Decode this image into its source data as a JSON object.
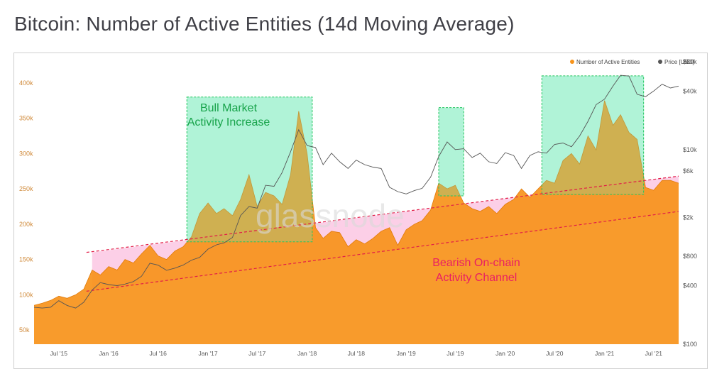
{
  "page": {
    "title": "Bitcoin: Number of Active Entities (14d Moving Average)"
  },
  "chart_data": {
    "type": "area",
    "legend": [
      {
        "name": "Number of Active Entities",
        "color": "#f7931a"
      },
      {
        "name": "Price [USD]",
        "color": "#555555"
      }
    ],
    "legend_position": "top-right",
    "watermark": "glassnode",
    "y_left": {
      "ticks": [
        "50k",
        "100k",
        "150k",
        "200k",
        "250k",
        "300k",
        "350k",
        "400k"
      ],
      "values": [
        50000,
        100000,
        150000,
        200000,
        250000,
        300000,
        350000,
        400000
      ]
    },
    "y_right": {
      "ticks": [
        "$100",
        "$400",
        "$800",
        "$2k",
        "$6k",
        "$10k",
        "$40k",
        "$80k"
      ],
      "values": [
        100,
        400,
        800,
        2000,
        6000,
        10000,
        40000,
        80000
      ],
      "scale": "log"
    },
    "x_ticks": [
      "Jul '15",
      "Jan '16",
      "Jul '16",
      "Jan '17",
      "Jul '17",
      "Jan '18",
      "Jul '18",
      "Jan '19",
      "Jul '19",
      "Jan '20",
      "Jul '20",
      "Jan '21",
      "Jul '21"
    ],
    "x_tick_dates": [
      "2015-07-01",
      "2016-01-01",
      "2016-07-01",
      "2017-01-01",
      "2017-07-01",
      "2018-01-01",
      "2018-07-01",
      "2019-01-01",
      "2019-07-01",
      "2020-01-01",
      "2020-07-01",
      "2021-01-01",
      "2021-07-01"
    ],
    "x_range": [
      "2015-04-01",
      "2021-10-01"
    ],
    "grid": false,
    "series": [
      {
        "name": "Number of Active Entities",
        "color": "#f7931a",
        "points": [
          [
            "2015-04-01",
            85000
          ],
          [
            "2015-05-01",
            88000
          ],
          [
            "2015-06-01",
            92000
          ],
          [
            "2015-07-01",
            98000
          ],
          [
            "2015-08-01",
            95000
          ],
          [
            "2015-09-01",
            100000
          ],
          [
            "2015-10-01",
            108000
          ],
          [
            "2015-11-01",
            135000
          ],
          [
            "2015-12-01",
            128000
          ],
          [
            "2016-01-01",
            140000
          ],
          [
            "2016-02-01",
            135000
          ],
          [
            "2016-03-01",
            150000
          ],
          [
            "2016-04-01",
            145000
          ],
          [
            "2016-05-01",
            158000
          ],
          [
            "2016-06-01",
            170000
          ],
          [
            "2016-07-01",
            155000
          ],
          [
            "2016-08-01",
            150000
          ],
          [
            "2016-09-01",
            162000
          ],
          [
            "2016-10-01",
            168000
          ],
          [
            "2016-11-01",
            182000
          ],
          [
            "2016-12-01",
            215000
          ],
          [
            "2017-01-01",
            230000
          ],
          [
            "2017-02-01",
            215000
          ],
          [
            "2017-03-01",
            222000
          ],
          [
            "2017-04-01",
            212000
          ],
          [
            "2017-05-01",
            235000
          ],
          [
            "2017-06-01",
            270000
          ],
          [
            "2017-07-01",
            225000
          ],
          [
            "2017-08-01",
            245000
          ],
          [
            "2017-09-01",
            240000
          ],
          [
            "2017-10-01",
            228000
          ],
          [
            "2017-11-01",
            270000
          ],
          [
            "2017-12-01",
            360000
          ],
          [
            "2018-01-01",
            300000
          ],
          [
            "2018-02-01",
            195000
          ],
          [
            "2018-03-01",
            180000
          ],
          [
            "2018-04-01",
            190000
          ],
          [
            "2018-05-01",
            188000
          ],
          [
            "2018-06-01",
            168000
          ],
          [
            "2018-07-01",
            178000
          ],
          [
            "2018-08-01",
            172000
          ],
          [
            "2018-09-01",
            180000
          ],
          [
            "2018-10-01",
            190000
          ],
          [
            "2018-11-01",
            195000
          ],
          [
            "2018-12-01",
            170000
          ],
          [
            "2019-01-01",
            192000
          ],
          [
            "2019-02-01",
            200000
          ],
          [
            "2019-03-01",
            205000
          ],
          [
            "2019-04-01",
            220000
          ],
          [
            "2019-05-01",
            258000
          ],
          [
            "2019-06-01",
            250000
          ],
          [
            "2019-07-01",
            255000
          ],
          [
            "2019-08-01",
            230000
          ],
          [
            "2019-09-01",
            222000
          ],
          [
            "2019-10-01",
            218000
          ],
          [
            "2019-11-01",
            225000
          ],
          [
            "2019-12-01",
            215000
          ],
          [
            "2020-01-01",
            228000
          ],
          [
            "2020-02-01",
            235000
          ],
          [
            "2020-03-01",
            250000
          ],
          [
            "2020-04-01",
            238000
          ],
          [
            "2020-05-01",
            250000
          ],
          [
            "2020-06-01",
            262000
          ],
          [
            "2020-07-01",
            258000
          ],
          [
            "2020-08-01",
            290000
          ],
          [
            "2020-09-01",
            300000
          ],
          [
            "2020-10-01",
            285000
          ],
          [
            "2020-11-01",
            325000
          ],
          [
            "2020-12-01",
            305000
          ],
          [
            "2021-01-01",
            375000
          ],
          [
            "2021-02-01",
            340000
          ],
          [
            "2021-03-01",
            355000
          ],
          [
            "2021-04-01",
            330000
          ],
          [
            "2021-05-01",
            320000
          ],
          [
            "2021-06-01",
            252000
          ],
          [
            "2021-07-01",
            248000
          ],
          [
            "2021-08-01",
            262000
          ],
          [
            "2021-09-01",
            262000
          ],
          [
            "2021-10-01",
            258000
          ]
        ]
      },
      {
        "name": "Price [USD]",
        "color": "#555555",
        "points": [
          [
            "2015-04-01",
            240
          ],
          [
            "2015-05-01",
            235
          ],
          [
            "2015-06-01",
            240
          ],
          [
            "2015-07-01",
            280
          ],
          [
            "2015-08-01",
            250
          ],
          [
            "2015-09-01",
            235
          ],
          [
            "2015-10-01",
            270
          ],
          [
            "2015-11-01",
            360
          ],
          [
            "2015-12-01",
            430
          ],
          [
            "2016-01-01",
            410
          ],
          [
            "2016-02-01",
            400
          ],
          [
            "2016-03-01",
            415
          ],
          [
            "2016-04-01",
            440
          ],
          [
            "2016-05-01",
            500
          ],
          [
            "2016-06-01",
            680
          ],
          [
            "2016-07-01",
            650
          ],
          [
            "2016-08-01",
            575
          ],
          [
            "2016-09-01",
            605
          ],
          [
            "2016-10-01",
            650
          ],
          [
            "2016-11-01",
            730
          ],
          [
            "2016-12-01",
            780
          ],
          [
            "2017-01-01",
            950
          ],
          [
            "2017-02-01",
            1050
          ],
          [
            "2017-03-01",
            1100
          ],
          [
            "2017-04-01",
            1250
          ],
          [
            "2017-05-01",
            2100
          ],
          [
            "2017-06-01",
            2600
          ],
          [
            "2017-07-01",
            2500
          ],
          [
            "2017-08-01",
            4300
          ],
          [
            "2017-09-01",
            4200
          ],
          [
            "2017-10-01",
            5800
          ],
          [
            "2017-11-01",
            9500
          ],
          [
            "2017-12-01",
            16000
          ],
          [
            "2018-01-01",
            11000
          ],
          [
            "2018-02-01",
            10500
          ],
          [
            "2018-03-01",
            7000
          ],
          [
            "2018-04-01",
            9200
          ],
          [
            "2018-05-01",
            7500
          ],
          [
            "2018-06-01",
            6400
          ],
          [
            "2018-07-01",
            7800
          ],
          [
            "2018-08-01",
            7000
          ],
          [
            "2018-09-01",
            6600
          ],
          [
            "2018-10-01",
            6400
          ],
          [
            "2018-11-01",
            4100
          ],
          [
            "2018-12-01",
            3700
          ],
          [
            "2019-01-01",
            3500
          ],
          [
            "2019-02-01",
            3800
          ],
          [
            "2019-03-01",
            4000
          ],
          [
            "2019-04-01",
            5200
          ],
          [
            "2019-05-01",
            8500
          ],
          [
            "2019-06-01",
            12000
          ],
          [
            "2019-07-01",
            10000
          ],
          [
            "2019-08-01",
            10200
          ],
          [
            "2019-09-01",
            8300
          ],
          [
            "2019-10-01",
            9200
          ],
          [
            "2019-11-01",
            7500
          ],
          [
            "2019-12-01",
            7200
          ],
          [
            "2020-01-01",
            9300
          ],
          [
            "2020-02-01",
            8700
          ],
          [
            "2020-03-01",
            6400
          ],
          [
            "2020-04-01",
            8700
          ],
          [
            "2020-05-01",
            9500
          ],
          [
            "2020-06-01",
            9200
          ],
          [
            "2020-07-01",
            11300
          ],
          [
            "2020-08-01",
            11700
          ],
          [
            "2020-09-01",
            10700
          ],
          [
            "2020-10-01",
            13800
          ],
          [
            "2020-11-01",
            19500
          ],
          [
            "2020-12-01",
            29000
          ],
          [
            "2021-01-01",
            33000
          ],
          [
            "2021-02-01",
            45000
          ],
          [
            "2021-03-01",
            58000
          ],
          [
            "2021-04-01",
            57000
          ],
          [
            "2021-05-01",
            37000
          ],
          [
            "2021-06-01",
            35000
          ],
          [
            "2021-07-01",
            40000
          ],
          [
            "2021-08-01",
            47000
          ],
          [
            "2021-09-01",
            43000
          ],
          [
            "2021-10-01",
            45000
          ]
        ]
      }
    ],
    "bull_boxes": [
      {
        "start": "2016-10-15",
        "end": "2018-01-20",
        "low": 175000,
        "high": 380000
      },
      {
        "start": "2019-05-01",
        "end": "2019-08-01",
        "low": 240000,
        "high": 365000
      },
      {
        "start": "2020-05-15",
        "end": "2021-05-25",
        "low": 242000,
        "high": 410000
      }
    ],
    "channel": {
      "upper": {
        "start": [
          "2015-11-01",
          160000
        ],
        "end": [
          "2021-10-01",
          268000
        ]
      },
      "lower": {
        "start": [
          "2015-11-01",
          105000
        ],
        "end": [
          "2021-10-01",
          218000
        ]
      }
    },
    "annotations": {
      "bull": [
        "Bull Market",
        "Activity Increase"
      ],
      "bear": [
        "Bearish On-chain",
        "Activity Channel"
      ]
    }
  }
}
